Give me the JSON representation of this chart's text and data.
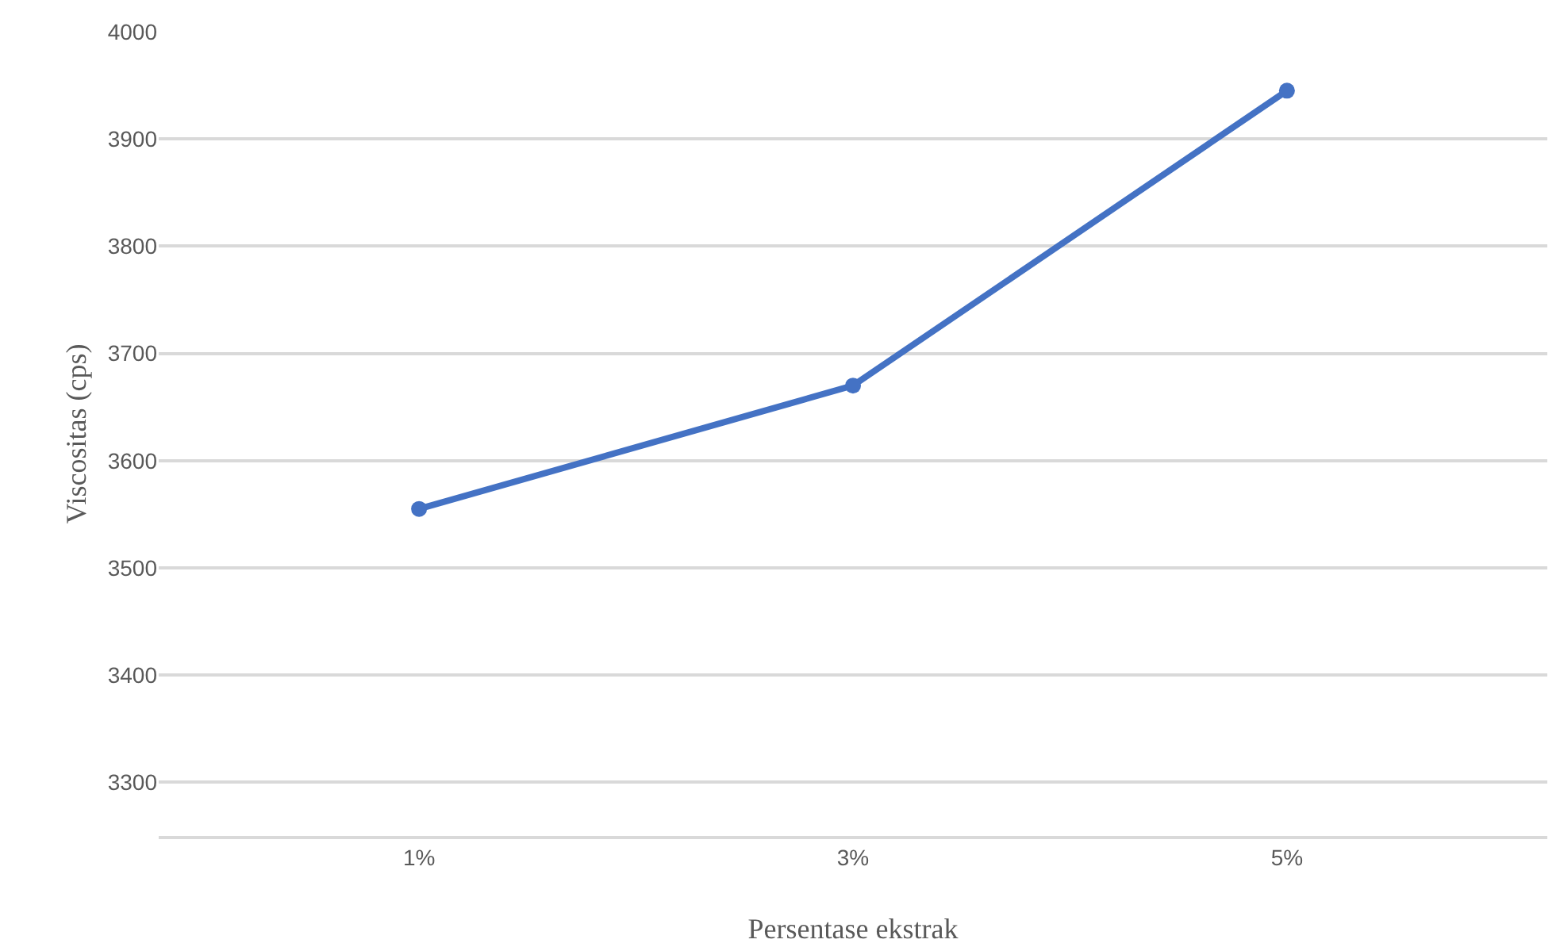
{
  "chart_data": {
    "type": "line",
    "xlabel": "Persentase ekstrak",
    "ylabel": "Viscositas (cps)",
    "categories": [
      "1%",
      "3%",
      "5%"
    ],
    "series": [
      {
        "color": "#4472c4",
        "values": [
          3555,
          3670,
          3945
        ]
      }
    ],
    "ylim": [
      3250,
      4000
    ],
    "yticks": [
      3300,
      3400,
      3500,
      3600,
      3700,
      3800,
      3900,
      4000
    ],
    "grid": "y",
    "marker": "circle",
    "line_style": "solid"
  }
}
